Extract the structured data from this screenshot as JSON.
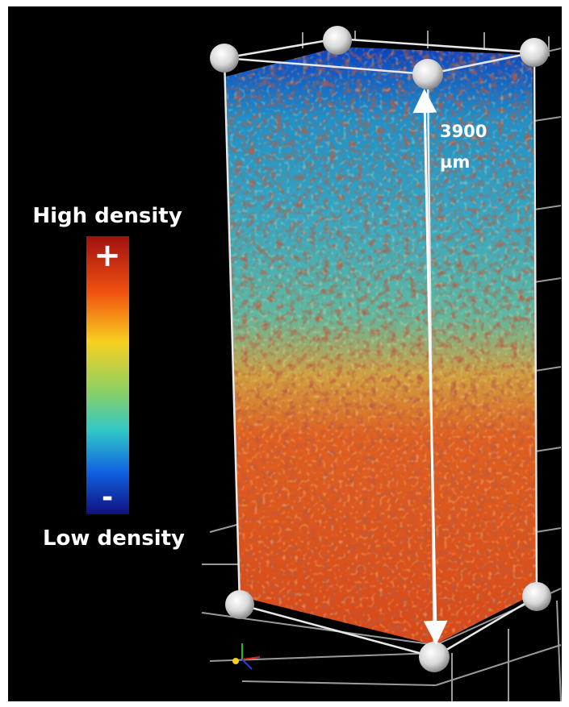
{
  "legend": {
    "high": "High density",
    "plus": "+",
    "minus": "-",
    "low": "Low density"
  },
  "measurement": {
    "value": 3900,
    "unit": "µm"
  }
}
